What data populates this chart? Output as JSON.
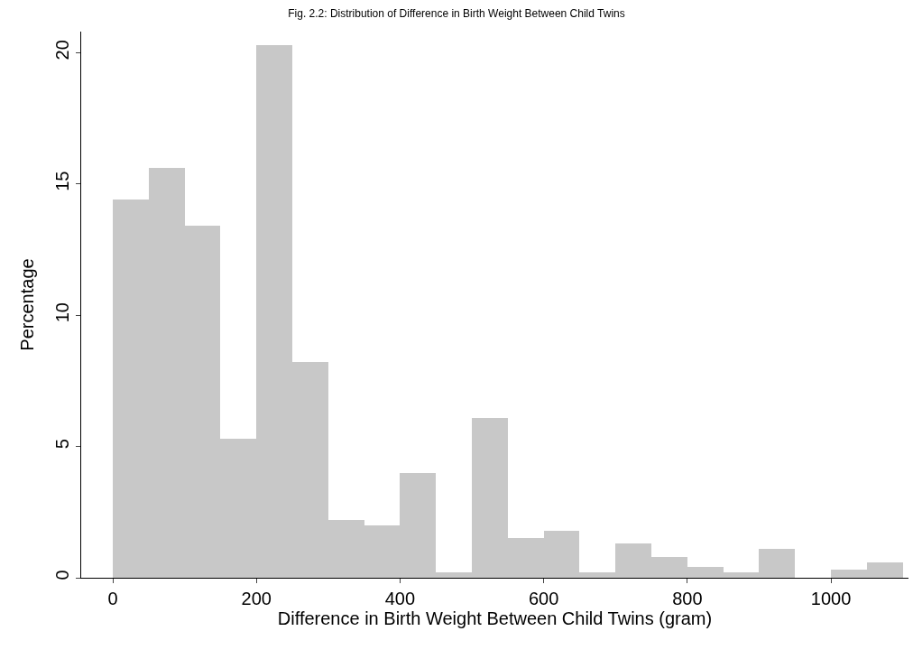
{
  "chart_data": {
    "type": "histogram",
    "title": "Fig. 2.2: Distribution of Difference in Birth Weight Between Child Twins",
    "xlabel": "Difference in Birth Weight Between Child Twins (gram)",
    "ylabel": "Percentage",
    "bins": [
      0,
      50,
      100,
      150,
      200,
      250,
      300,
      350,
      400,
      450,
      500,
      550,
      600,
      650,
      700,
      750,
      800,
      850,
      900,
      950,
      1000,
      1050,
      1100
    ],
    "values": [
      14.4,
      15.6,
      13.4,
      5.3,
      20.3,
      8.2,
      2.2,
      2.0,
      4.0,
      0.2,
      6.1,
      1.5,
      1.8,
      0.2,
      1.3,
      0.8,
      0.4,
      0.2,
      1.1,
      0,
      0.3,
      0.6
    ],
    "color": "#c8c8c8",
    "xlim": [
      -44,
      1108
    ],
    "ylim": [
      0,
      20.8
    ],
    "xticks": [
      0,
      200,
      400,
      600,
      800,
      1000
    ],
    "yticks": [
      0,
      5,
      10,
      15,
      20
    ]
  }
}
